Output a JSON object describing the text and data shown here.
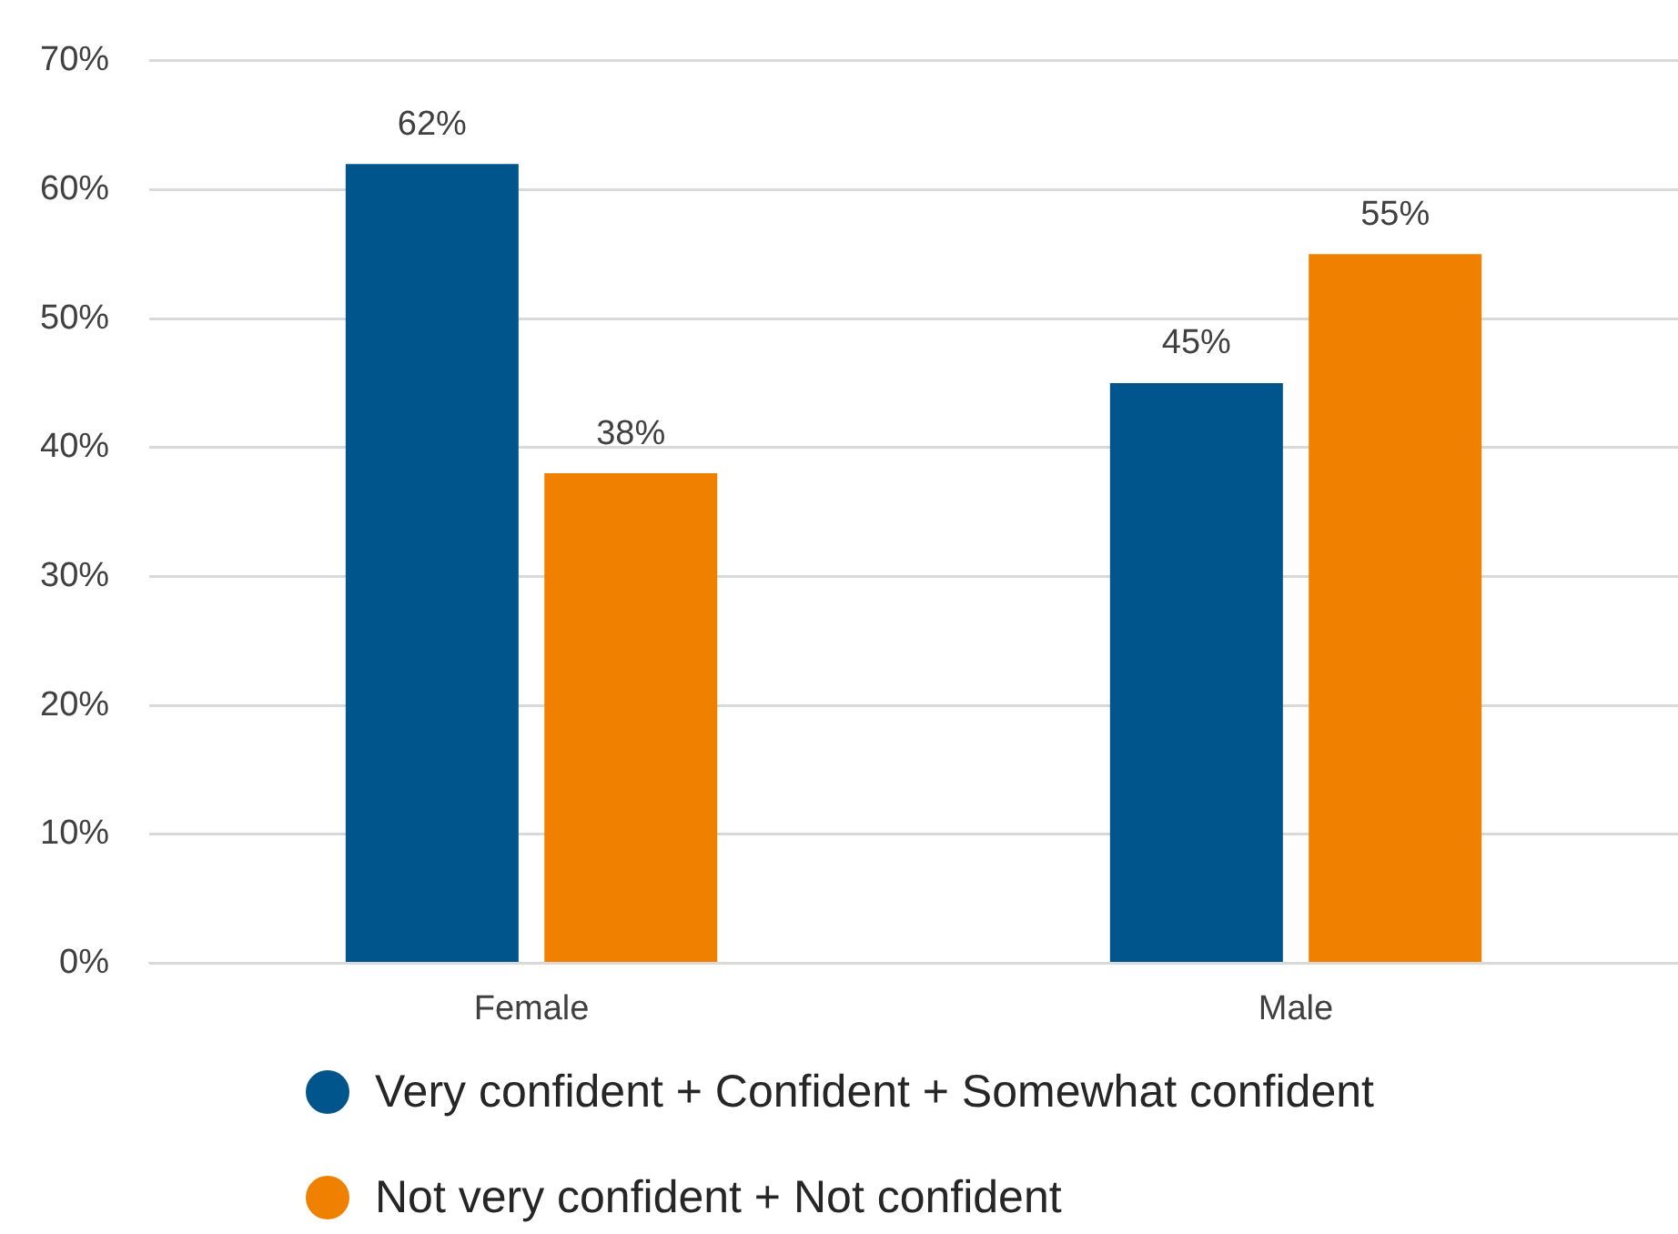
{
  "chart_data": {
    "type": "bar",
    "categories": [
      "Female",
      "Male"
    ],
    "series": [
      {
        "name": "Very confident + Confident + Somewhat confident",
        "color": "#00558c",
        "values": [
          62,
          45
        ],
        "value_labels": [
          "62%",
          "45%"
        ]
      },
      {
        "name": "Not very confident + Not confident",
        "color": "#f08000",
        "values": [
          38,
          55
        ],
        "value_labels": [
          "38%",
          "55%"
        ]
      }
    ],
    "ylim": [
      0,
      70
    ],
    "yticks": [
      {
        "value": 0,
        "label": "0%"
      },
      {
        "value": 10,
        "label": "10%"
      },
      {
        "value": 20,
        "label": "20%"
      },
      {
        "value": 30,
        "label": "30%"
      },
      {
        "value": 40,
        "label": "40%"
      },
      {
        "value": 50,
        "label": "50%"
      },
      {
        "value": 60,
        "label": "60%"
      },
      {
        "value": 70,
        "label": "70%"
      }
    ],
    "grid": "y",
    "legend": "bottom"
  }
}
